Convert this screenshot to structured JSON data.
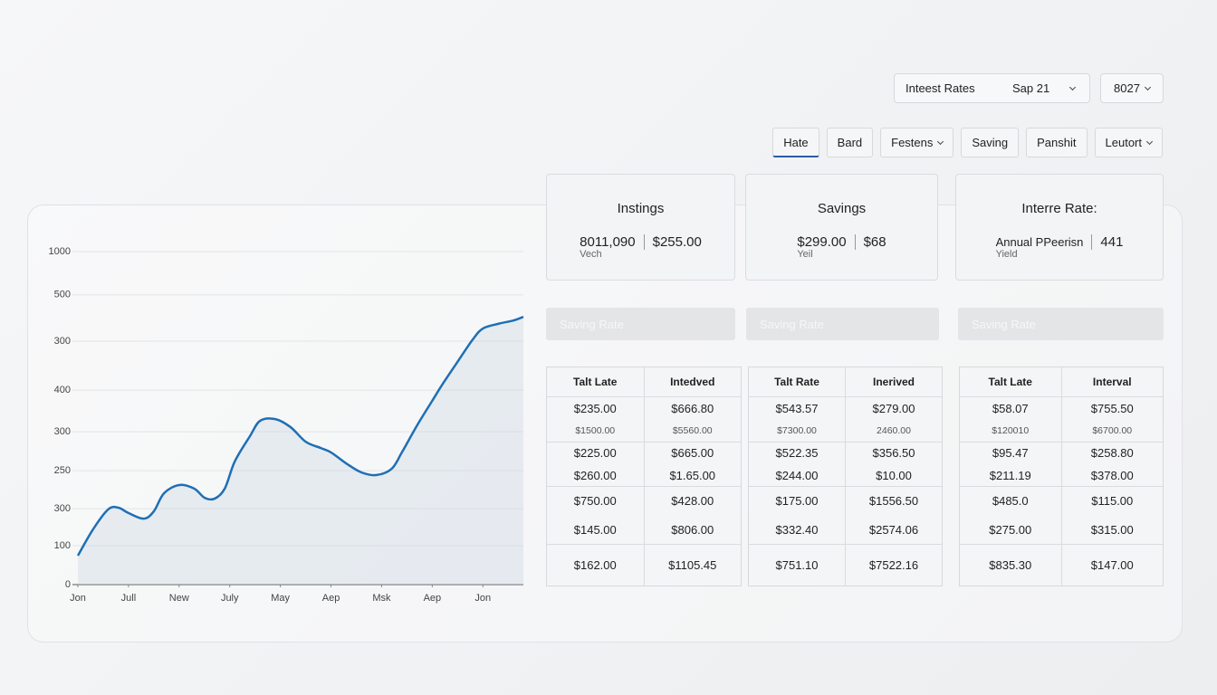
{
  "toolbar": {
    "dropdowns": [
      {
        "label": "Inteest Rates",
        "value": "Sap 21"
      },
      {
        "value": "8027"
      }
    ]
  },
  "tabs": [
    {
      "label": "Hate",
      "active": true
    },
    {
      "label": "Bard"
    },
    {
      "label": "Festens",
      "dropdown": true
    },
    {
      "label": "Saving"
    },
    {
      "label": "Panshit"
    },
    {
      "label": "Leutort",
      "dropdown": true
    }
  ],
  "cards": [
    {
      "title": "Instings",
      "items": [
        {
          "value": "8011,090",
          "sub": "Vech"
        },
        {
          "value": "$255.00"
        }
      ]
    },
    {
      "title": "Savings",
      "items": [
        {
          "value": "$299.00",
          "sub": "Yeil"
        },
        {
          "value": "$68"
        }
      ]
    },
    {
      "title": "Interre Rate:",
      "items": [
        {
          "value": "Annual PPeerisn",
          "sub": "Yield"
        },
        {
          "value": "441"
        }
      ]
    }
  ],
  "buttons": [
    "Saving Rate",
    "Saving Rate",
    "Saving Rate"
  ],
  "tables": [
    {
      "headers": [
        "Talt Late",
        "Intedved"
      ],
      "rows": [
        [
          [
            "$235.00",
            "$1500.00"
          ],
          [
            "$666.80",
            "$5560.00"
          ]
        ],
        [
          [
            "$225.00",
            "$260.00"
          ],
          [
            "$665.00",
            "$1.65.00"
          ]
        ],
        [
          [
            "$750.00",
            "$145.00"
          ],
          [
            "$428.00",
            "$806.00"
          ]
        ],
        [
          [
            "$162.00"
          ],
          [
            "$1105.45"
          ]
        ]
      ]
    },
    {
      "headers": [
        "Talt Rate",
        "Inerived"
      ],
      "rows": [
        [
          [
            "$543.57",
            "$7300.00"
          ],
          [
            "$279.00",
            "2460.00"
          ]
        ],
        [
          [
            "$522.35",
            "$244.00"
          ],
          [
            "$356.50",
            "$10.00"
          ]
        ],
        [
          [
            "$175.00",
            "$332.40"
          ],
          [
            "$1556.50",
            "$2574.06"
          ]
        ],
        [
          [
            "$751.10"
          ],
          [
            "$7522.16"
          ]
        ]
      ]
    },
    {
      "headers": [
        "Talt Late",
        "Interval"
      ],
      "rows": [
        [
          [
            "$58.07",
            "$120010"
          ],
          [
            "$755.50",
            "$6700.00"
          ]
        ],
        [
          [
            "$95.47",
            "$211.19"
          ],
          [
            "$258.80",
            "$378.00"
          ]
        ],
        [
          [
            "$485.0",
            "$275.00"
          ],
          [
            "$115.00",
            "$315.00"
          ]
        ],
        [
          [
            "$835.30"
          ],
          [
            "$147.00"
          ]
        ]
      ]
    }
  ],
  "chart_data": {
    "type": "line",
    "color": "#1f6fb5",
    "grid": true,
    "xlim": [
      0,
      8.8
    ],
    "ylim": [
      0,
      1000
    ],
    "xticks": [
      {
        "value": 0,
        "label": "Jon"
      },
      {
        "value": 1,
        "label": "Jull"
      },
      {
        "value": 2,
        "label": "New"
      },
      {
        "value": 3,
        "label": "July"
      },
      {
        "value": 4,
        "label": "May"
      },
      {
        "value": 5,
        "label": "Aep"
      },
      {
        "value": 6,
        "label": "Msk"
      },
      {
        "value": 7,
        "label": "Aep"
      },
      {
        "value": 8,
        "label": "Jon"
      }
    ],
    "yticks": [
      0,
      {
        "value": 117,
        "label": "100"
      },
      {
        "value": 228,
        "label": "300"
      },
      {
        "value": 342,
        "label": "250"
      },
      {
        "value": 459,
        "label": "300"
      },
      {
        "value": 584,
        "label": "400"
      },
      {
        "value": 731,
        "label": "300"
      },
      {
        "value": 870,
        "label": "500"
      },
      1000
    ],
    "x": [
      0,
      0.3,
      0.6,
      0.8,
      1.0,
      1.3,
      1.5,
      1.7,
      2.0,
      2.3,
      2.5,
      2.7,
      2.9,
      3.1,
      3.4,
      3.6,
      3.9,
      4.2,
      4.5,
      4.8,
      5.0,
      5.3,
      5.6,
      5.9,
      6.2,
      6.4,
      6.7,
      7.0,
      7.2,
      7.5,
      7.8,
      8.0,
      8.3,
      8.6,
      8.8
    ],
    "series": [
      {
        "values": [
          87,
          166,
          226,
          231,
          215,
          198,
          220,
          274,
          299,
          288,
          261,
          258,
          288,
          370,
          446,
          492,
          497,
          473,
          429,
          410,
          397,
          364,
          337,
          329,
          348,
          397,
          478,
          552,
          601,
          669,
          736,
          769,
          783,
          793,
          804
        ]
      }
    ]
  }
}
